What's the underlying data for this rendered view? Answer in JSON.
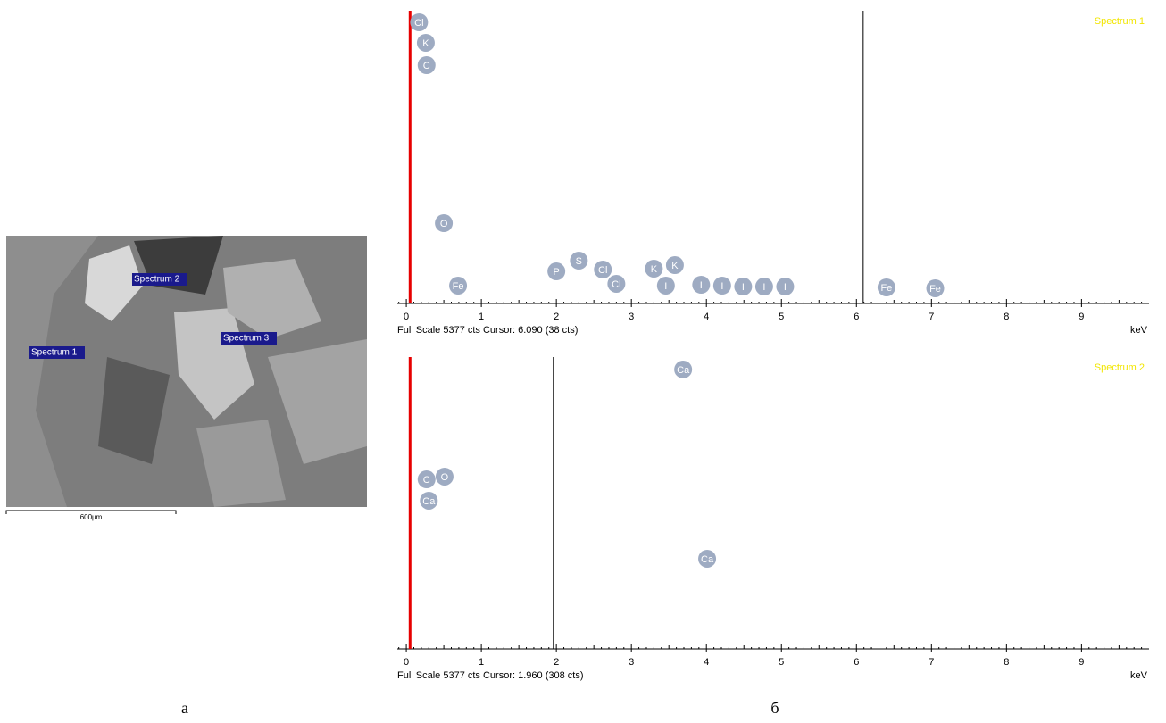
{
  "image": {
    "labels": [
      "Spectrum 2",
      "Spectrum 1",
      "Spectrum 3"
    ],
    "scale_bar": "600µm",
    "caption": "а"
  },
  "caption": "б",
  "chart_data": [
    {
      "type": "spectrum",
      "title": "Spectrum 1",
      "title_color": "#f2e600",
      "footer": "Full Scale 5377 cts Cursor: 6.090  (38 cts)",
      "x_label": "keV",
      "xlim": [
        -0.12,
        9.9
      ],
      "xticks": [
        0,
        1,
        2,
        3,
        4,
        5,
        6,
        7,
        8,
        9
      ],
      "ylim": [
        0,
        5377
      ],
      "marker": 0.05,
      "marker_color": "#e60000",
      "cursor": 6.09,
      "peak_color": "#9eabc2",
      "peaks": [
        {
          "label": "Cl",
          "x": 0.17,
          "y": 5164
        },
        {
          "label": "K",
          "x": 0.26,
          "y": 4787
        },
        {
          "label": "C",
          "x": 0.27,
          "y": 4377
        },
        {
          "label": "O",
          "x": 0.5,
          "y": 1475
        },
        {
          "label": "Fe",
          "x": 0.69,
          "y": 328
        },
        {
          "label": "P",
          "x": 2.0,
          "y": 590
        },
        {
          "label": "S",
          "x": 2.3,
          "y": 787
        },
        {
          "label": "Cl",
          "x": 2.62,
          "y": 623
        },
        {
          "label": "Cl",
          "x": 2.8,
          "y": 361
        },
        {
          "label": "K",
          "x": 3.3,
          "y": 639
        },
        {
          "label": "K",
          "x": 3.58,
          "y": 705
        },
        {
          "label": "I",
          "x": 3.46,
          "y": 328
        },
        {
          "label": "I",
          "x": 3.93,
          "y": 344
        },
        {
          "label": "I",
          "x": 4.21,
          "y": 328
        },
        {
          "label": "I",
          "x": 4.49,
          "y": 311
        },
        {
          "label": "I",
          "x": 4.77,
          "y": 311
        },
        {
          "label": "I",
          "x": 5.05,
          "y": 311
        },
        {
          "label": "Fe",
          "x": 6.4,
          "y": 295
        },
        {
          "label": "Fe",
          "x": 7.05,
          "y": 279
        }
      ]
    },
    {
      "type": "spectrum",
      "title": "Spectrum 2",
      "title_color": "#f2e600",
      "footer": "Full Scale 5377 cts Cursor: 1.960  (308 cts)",
      "x_label": "keV",
      "xlim": [
        -0.12,
        9.9
      ],
      "xticks": [
        0,
        1,
        2,
        3,
        4,
        5,
        6,
        7,
        8,
        9
      ],
      "ylim": [
        0,
        5377
      ],
      "marker": 0.05,
      "marker_color": "#e60000",
      "cursor": 1.96,
      "peak_color": "#9eabc2",
      "peaks": [
        {
          "label": "Ca",
          "x": 3.69,
          "y": 5147
        },
        {
          "label": "C",
          "x": 0.27,
          "y": 3124
        },
        {
          "label": "O",
          "x": 0.51,
          "y": 3174
        },
        {
          "label": "Ca",
          "x": 0.3,
          "y": 2730
        },
        {
          "label": "Ca",
          "x": 4.01,
          "y": 1661
        }
      ]
    }
  ]
}
